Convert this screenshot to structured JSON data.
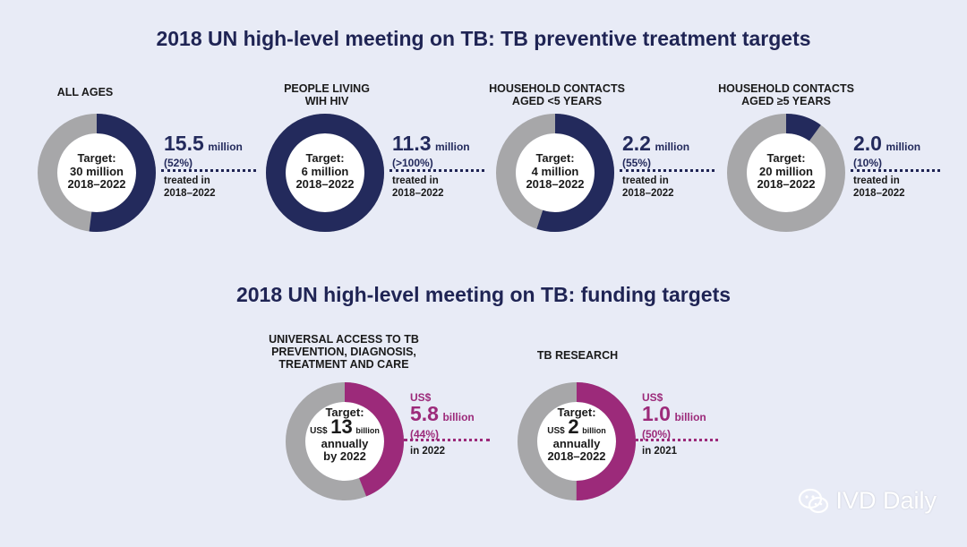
{
  "colors": {
    "navy": "#232a5c",
    "magenta": "#9c2a7a",
    "track": "#a7a7a9",
    "background": "#e8ebf6",
    "title": "#1f2454"
  },
  "titles": {
    "preventive": "2018 UN high-level meeting on TB: TB preventive treatment targets",
    "funding": "2018 UN high-level meeting on TB: funding targets"
  },
  "chart_data": [
    {
      "type": "donut",
      "title": "2018 UN high-level meeting on TB: TB preventive treatment targets",
      "panels": [
        {
          "label": "ALL AGES",
          "target_label": "Target:",
          "target_value": "30 million",
          "target_period": "2018–2022",
          "achieved_value": "15.5",
          "achieved_unit": "million",
          "achieved_percent_text": "(52%)",
          "caption_line1": "treated in",
          "caption_line2": "2018–2022",
          "fraction": 0.52,
          "color": "#232a5c"
        },
        {
          "label": "PEOPLE LIVING WIH HIV",
          "label_lines": [
            "PEOPLE LIVING",
            "WIH HIV"
          ],
          "target_label": "Target:",
          "target_value": "6 million",
          "target_period": "2018–2022",
          "achieved_value": "11.3",
          "achieved_unit": "million",
          "achieved_percent_text": "(>100%)",
          "caption_line1": "treated in",
          "caption_line2": "2018–2022",
          "fraction": 1.0,
          "color": "#232a5c"
        },
        {
          "label": "HOUSEHOLD CONTACTS AGED <5 YEARS",
          "label_lines": [
            "HOUSEHOLD CONTACTS",
            "AGED <5 YEARS"
          ],
          "target_label": "Target:",
          "target_value": "4 million",
          "target_period": "2018–2022",
          "achieved_value": "2.2",
          "achieved_unit": "million",
          "achieved_percent_text": "(55%)",
          "caption_line1": "treated in",
          "caption_line2": "2018–2022",
          "fraction": 0.55,
          "color": "#232a5c"
        },
        {
          "label": "HOUSEHOLD CONTACTS AGED ≥5 YEARS",
          "label_lines": [
            "HOUSEHOLD CONTACTS",
            "AGED ≥5 YEARS"
          ],
          "target_label": "Target:",
          "target_value": "20 million",
          "target_period": "2018–2022",
          "achieved_value": "2.0",
          "achieved_unit": "million",
          "achieved_percent_text": "(10%)",
          "caption_line1": "treated in",
          "caption_line2": "2018–2022",
          "fraction": 0.1,
          "color": "#232a5c"
        }
      ]
    },
    {
      "type": "donut",
      "title": "2018 UN high-level meeting on TB: funding targets",
      "panels": [
        {
          "label": "UNIVERSAL ACCESS TO TB PREVENTION, DIAGNOSIS, TREATMENT AND CARE",
          "label_lines": [
            "UNIVERSAL ACCESS TO TB",
            "PREVENTION, DIAGNOSIS,",
            "TREATMENT AND CARE"
          ],
          "target_label": "Target:",
          "target_currency": "US$",
          "target_number": "13",
          "target_unit": "billion",
          "target_line3": "annually",
          "target_line4": "by 2022",
          "achieved_currency": "US$",
          "achieved_value": "5.8",
          "achieved_unit": "billion",
          "achieved_percent_text": "(44%)",
          "caption_line1": "in 2022",
          "fraction": 0.44,
          "color": "#9c2a7a"
        },
        {
          "label": "TB RESEARCH",
          "label_lines": [
            "TB RESEARCH"
          ],
          "target_label": "Target:",
          "target_currency": "US$",
          "target_number": "2",
          "target_unit": "billion",
          "target_line3": "annually",
          "target_line4": "2018–2022",
          "achieved_currency": "US$",
          "achieved_value": "1.0",
          "achieved_unit": "billion",
          "achieved_percent_text": "(50%)",
          "caption_line1": "in 2021",
          "fraction": 0.5,
          "color": "#9c2a7a"
        }
      ]
    }
  ],
  "watermark": {
    "text": "IVD Daily",
    "icon": "wechat-icon"
  }
}
